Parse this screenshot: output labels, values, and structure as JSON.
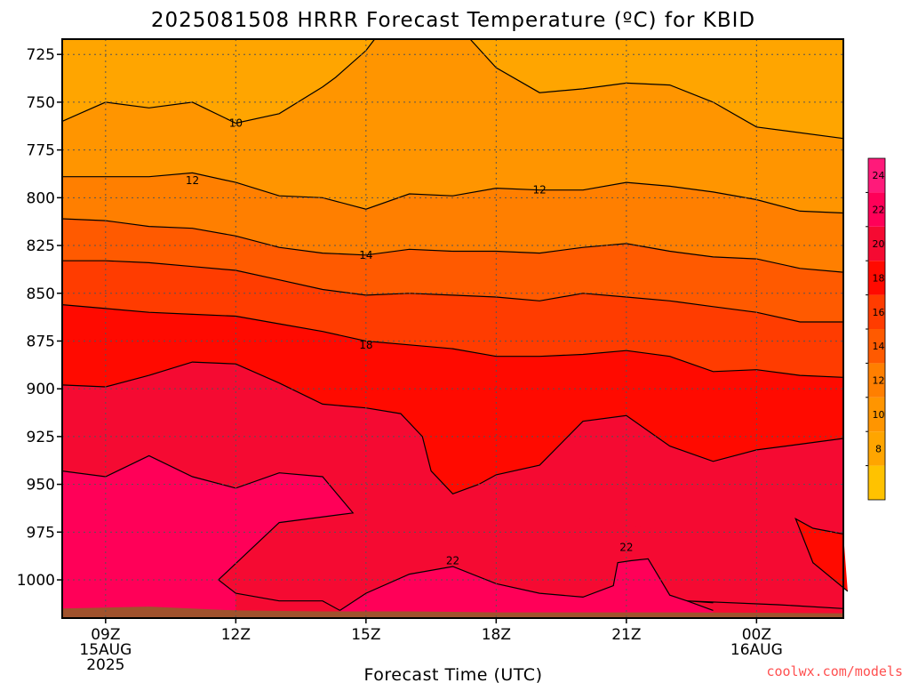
{
  "chart_data": {
    "type": "contour",
    "title": "2025081508 HRRR Forecast Temperature (ºC) for KBID",
    "xlabel": "Forecast Time (UTC)",
    "ylabel": "",
    "ylim": [
      1020,
      717
    ],
    "y_ticks": [
      725,
      750,
      775,
      800,
      825,
      850,
      875,
      900,
      925,
      950,
      975,
      1000
    ],
    "x_tick_labels": [
      {
        "label": "09Z",
        "date": "15AUG",
        "year": "2025"
      },
      {
        "label": "12Z",
        "date": "",
        "year": ""
      },
      {
        "label": "15Z",
        "date": "",
        "year": ""
      },
      {
        "label": "18Z",
        "date": "",
        "year": ""
      },
      {
        "label": "21Z",
        "date": "",
        "year": ""
      },
      {
        "label": "00Z",
        "date": "16AUG",
        "year": ""
      }
    ],
    "contour_levels": [
      8,
      10,
      12,
      14,
      16,
      18,
      20,
      22,
      24,
      26
    ],
    "contour_labels": [
      {
        "text": "10",
        "x": 12.0,
        "y": 761
      },
      {
        "text": "12",
        "x": 11.0,
        "y": 791
      },
      {
        "text": "12",
        "x": 19.0,
        "y": 796
      },
      {
        "text": "14",
        "x": 15.0,
        "y": 830
      },
      {
        "text": "18",
        "x": 15.0,
        "y": 877
      },
      {
        "text": "22",
        "x": 17.0,
        "y": 990
      },
      {
        "text": "22",
        "x": 21.0,
        "y": 983
      }
    ],
    "colorbar": {
      "ticks": [
        "8",
        "10",
        "12",
        "14",
        "16",
        "18",
        "20",
        "22",
        "24"
      ],
      "colors": [
        "#FFC200",
        "#FFA500",
        "#FF9500",
        "#FF7F00",
        "#FF5A00",
        "#FF3C00",
        "#FF0A00",
        "#F50A32",
        "#FF0058",
        "#FF1A7A"
      ]
    },
    "colors": {
      "t8_10": "#FFA500",
      "t10_12": "#FF9500",
      "t12_14": "#FF7F00",
      "t14_16": "#FF5A00",
      "t16_18": "#FF3C00",
      "t18_20": "#FF0A00",
      "t20_22": "#F50A32",
      "t22_24": "#FF0058",
      "terrain": "#A0522D"
    }
  },
  "footer": {
    "credit": "coolwx.com/models"
  }
}
